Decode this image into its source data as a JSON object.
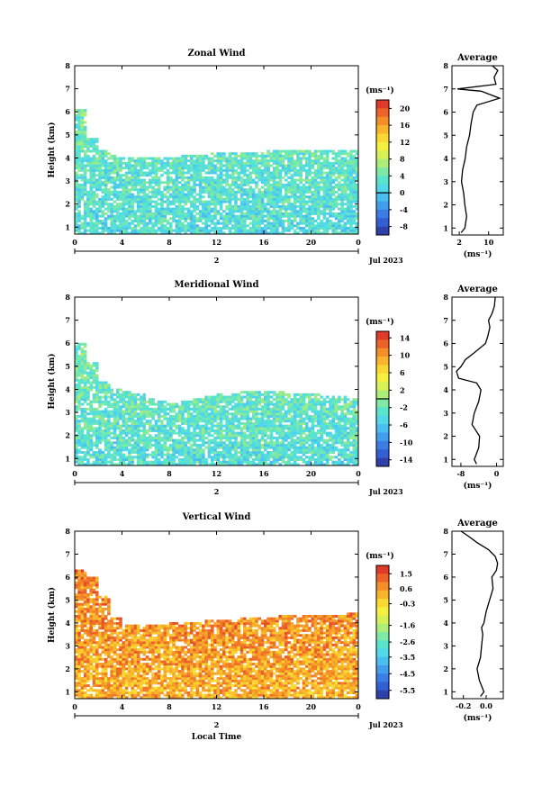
{
  "chart_data": [
    {
      "type": "heatmap",
      "title": "Zonal Wind",
      "ylabel": "Height (km)",
      "xlabel": "",
      "x_ticks": [
        "0",
        "4",
        "8",
        "12",
        "16",
        "20",
        "0"
      ],
      "y_ticks": [
        "1",
        "2",
        "3",
        "4",
        "5",
        "6",
        "7",
        "8"
      ],
      "xlim": [
        0,
        24
      ],
      "ylim": [
        0.7,
        8
      ],
      "day_label": "2",
      "date_label": "Jul 2023",
      "colorbar": {
        "unit": "(ms⁻¹)",
        "ticks": [
          "20",
          "16",
          "12",
          "8",
          "4",
          "0",
          "-4",
          "-8"
        ],
        "tick_values": [
          20,
          16,
          12,
          8,
          4,
          0,
          -4,
          -8
        ],
        "range": [
          -10,
          22
        ],
        "contour_value": 0
      },
      "field": {
        "top_height_by_hour": [
          6.1,
          4.9,
          4.4,
          4.1,
          4.0,
          4.0,
          4.0,
          4.0,
          4.0,
          4.1,
          4.1,
          4.2,
          4.2,
          4.2,
          4.2,
          4.2,
          4.3,
          4.3,
          4.3,
          4.3,
          4.3,
          4.3,
          4.4,
          4.4
        ],
        "base_value": 2.5
      },
      "average": {
        "title": "Average",
        "xlabel": "(ms⁻¹)",
        "x_ticks": [
          "2",
          "10"
        ],
        "xlim": [
          0,
          14
        ],
        "heights": [
          0.8,
          1.0,
          1.5,
          2.0,
          2.5,
          3.0,
          3.5,
          4.0,
          4.5,
          5.0,
          5.5,
          6.0,
          6.3,
          6.6,
          6.9,
          7.0,
          7.2,
          7.5,
          7.8,
          8.0
        ],
        "values": [
          2.5,
          3.5,
          4.0,
          3.5,
          3.2,
          2.6,
          2.9,
          3.6,
          4.0,
          4.8,
          5.2,
          5.8,
          6.8,
          13.0,
          8.0,
          1.5,
          12.0,
          11.5,
          12.5,
          11.0
        ]
      }
    },
    {
      "type": "heatmap",
      "title": "Meridional Wind",
      "ylabel": "Height (km)",
      "xlabel": "",
      "x_ticks": [
        "0",
        "4",
        "8",
        "12",
        "16",
        "20",
        "0"
      ],
      "y_ticks": [
        "1",
        "2",
        "3",
        "4",
        "5",
        "6",
        "7",
        "8"
      ],
      "xlim": [
        0,
        24
      ],
      "ylim": [
        0.7,
        8
      ],
      "day_label": "2",
      "date_label": "Jul 2023",
      "colorbar": {
        "unit": "(ms⁻¹)",
        "ticks": [
          "14",
          "10",
          "6",
          "2",
          "-2",
          "-6",
          "-10",
          "-14"
        ],
        "tick_values": [
          14,
          10,
          6,
          2,
          -2,
          -6,
          -10,
          -14
        ],
        "range": [
          -15.5,
          15.5
        ],
        "contour_value": 0
      },
      "field": {
        "top_height_by_hour": [
          6.0,
          5.2,
          4.4,
          4.0,
          3.9,
          3.8,
          3.6,
          3.5,
          3.4,
          3.5,
          3.6,
          3.7,
          3.8,
          3.8,
          3.9,
          3.9,
          3.9,
          3.9,
          3.8,
          3.8,
          3.8,
          3.7,
          3.7,
          3.6
        ],
        "base_value": -3.0
      },
      "average": {
        "title": "Average",
        "xlabel": "(ms⁻¹)",
        "x_ticks": [
          "-8",
          "0"
        ],
        "xlim": [
          -10,
          1.5
        ],
        "heights": [
          0.8,
          1.0,
          1.5,
          2.0,
          2.5,
          3.0,
          3.5,
          4.0,
          4.3,
          4.5,
          4.8,
          5.0,
          5.3,
          5.6,
          6.0,
          6.3,
          6.7,
          7.0,
          7.3,
          7.6,
          8.0
        ],
        "values": [
          -4.5,
          -5.0,
          -4.0,
          -3.8,
          -5.5,
          -5.0,
          -4.0,
          -3.5,
          -4.5,
          -8.5,
          -9.0,
          -8.0,
          -7.0,
          -5.0,
          -2.5,
          -2.0,
          -1.5,
          -1.8,
          -1.0,
          -0.5,
          -0.3
        ]
      }
    },
    {
      "type": "heatmap",
      "title": "Vertical Wind",
      "ylabel": "Height (km)",
      "xlabel": "Local Time",
      "x_ticks": [
        "0",
        "4",
        "8",
        "12",
        "16",
        "20",
        "0"
      ],
      "y_ticks": [
        "1",
        "2",
        "3",
        "4",
        "5",
        "6",
        "7",
        "8"
      ],
      "xlim": [
        0,
        24
      ],
      "ylim": [
        0.7,
        8
      ],
      "day_label": "2",
      "date_label": "Jul 2023",
      "colorbar": {
        "unit": "(ms⁻¹)",
        "ticks": [
          "1.5",
          "0.6",
          "-0.3",
          "-1.6",
          "-2.6",
          "-3.5",
          "-4.5",
          "-5.5"
        ],
        "tick_values": [
          1.5,
          0.6,
          -0.3,
          -1.6,
          -2.6,
          -3.5,
          -4.5,
          -5.5
        ],
        "range": [
          -6.0,
          2.0
        ],
        "contour_value": null
      },
      "field": {
        "top_height_by_hour": [
          6.3,
          6.0,
          5.2,
          4.2,
          3.9,
          3.9,
          3.9,
          3.9,
          4.0,
          4.0,
          4.0,
          4.1,
          4.1,
          4.1,
          4.2,
          4.2,
          4.2,
          4.3,
          4.3,
          4.3,
          4.4,
          4.4,
          4.4,
          4.5
        ],
        "base_value": 0.5
      },
      "average": {
        "title": "Average",
        "xlabel": "(ms⁻¹)",
        "x_ticks": [
          "-0.2",
          "0.0"
        ],
        "xlim": [
          -0.3,
          0.15
        ],
        "heights": [
          0.8,
          1.0,
          1.5,
          2.0,
          2.5,
          3.0,
          3.5,
          3.8,
          4.0,
          4.5,
          5.0,
          5.5,
          6.0,
          6.3,
          6.6,
          6.9,
          7.2,
          7.5,
          7.8,
          8.0
        ],
        "values": [
          -0.05,
          -0.02,
          -0.06,
          -0.08,
          -0.05,
          -0.04,
          -0.03,
          -0.04,
          -0.02,
          0.0,
          0.03,
          0.06,
          0.05,
          0.09,
          0.1,
          0.08,
          0.02,
          -0.08,
          -0.16,
          -0.22
        ]
      }
    }
  ]
}
